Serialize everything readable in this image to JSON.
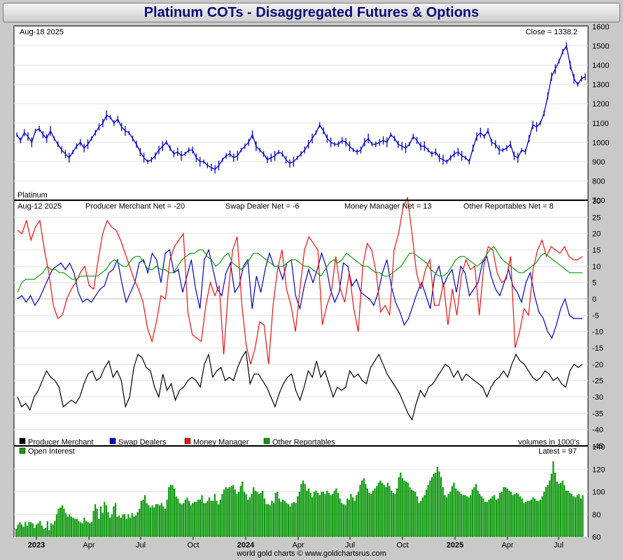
{
  "title": "Platinum COTs - Disaggregated Futures & Options",
  "credit": "world gold charts © www.goldchartsrus.com",
  "chart_data": [
    {
      "type": "line",
      "name": "price",
      "date_label": "Aug-18  2025",
      "close_label": "Close = 1338.2",
      "series_label": "Platinum",
      "ylim": [
        700,
        1600
      ],
      "yticks": [
        700,
        800,
        900,
        1000,
        1100,
        1200,
        1300,
        1400,
        1500,
        1600
      ],
      "values": [
        1040,
        1010,
        1050,
        1030,
        1000,
        1060,
        1070,
        1040,
        1020,
        1060,
        1020,
        990,
        960,
        940,
        920,
        950,
        980,
        1000,
        970,
        990,
        1020,
        1050,
        1080,
        1100,
        1140,
        1130,
        1100,
        1120,
        1080,
        1060,
        1050,
        1020,
        990,
        950,
        920,
        900,
        910,
        930,
        960,
        980,
        1000,
        970,
        940,
        950,
        930,
        940,
        960,
        960,
        920,
        900,
        900,
        880,
        870,
        860,
        880,
        910,
        930,
        940,
        920,
        930,
        960,
        980,
        1000,
        1040,
        980,
        960,
        940,
        910,
        920,
        930,
        950,
        940,
        910,
        890,
        900,
        920,
        940,
        960,
        990,
        1020,
        1050,
        1090,
        1060,
        1020,
        1000,
        990,
        990,
        1010,
        1000,
        980,
        960,
        950,
        960,
        1000,
        1020,
        990,
        990,
        1000,
        1010,
        1000,
        1040,
        1020,
        990,
        980,
        970,
        990,
        1030,
        1010,
        980,
        980,
        960,
        940,
        950,
        920,
        910,
        900,
        920,
        940,
        950,
        930,
        920,
        900,
        970,
        1030,
        1050,
        1030,
        1060,
        1000,
        990,
        960,
        960,
        970,
        990,
        930,
        920,
        960,
        950,
        1020,
        1090,
        1080,
        1100,
        1150,
        1240,
        1340,
        1380,
        1420,
        1470,
        1500,
        1400,
        1330,
        1300,
        1330,
        1340
      ]
    },
    {
      "type": "line",
      "name": "cot_net",
      "date_label": "Aug-12  2025",
      "ylim": [
        -45,
        30
      ],
      "yticks": [
        -45,
        -40,
        -35,
        -30,
        -25,
        -20,
        -15,
        -10,
        -5,
        0,
        5,
        10,
        15,
        20,
        25,
        30
      ],
      "series": [
        {
          "name": "Producer Merchant",
          "label": "Producer Merchant Net = -20",
          "color": "#000000",
          "values": [
            -30,
            -33,
            -32,
            -34,
            -30,
            -28,
            -25,
            -22,
            -24,
            -25,
            -27,
            -33,
            -32,
            -31,
            -32,
            -30,
            -26,
            -23,
            -22,
            -25,
            -24,
            -21,
            -19,
            -24,
            -22,
            -25,
            -33,
            -30,
            -21,
            -17,
            -18,
            -21,
            -22,
            -27,
            -30,
            -23,
            -28,
            -26,
            -31,
            -28,
            -27,
            -25,
            -24,
            -25,
            -27,
            -20,
            -17,
            -24,
            -22,
            -21,
            -25,
            -24,
            -25,
            -21,
            -18,
            -16,
            -26,
            -23,
            -23,
            -25,
            -27,
            -30,
            -33,
            -29,
            -26,
            -24,
            -23,
            -28,
            -31,
            -27,
            -22,
            -24,
            -19,
            -24,
            -22,
            -26,
            -30,
            -27,
            -28,
            -27,
            -22,
            -24,
            -23,
            -25,
            -26,
            -21,
            -19,
            -17,
            -20,
            -23,
            -25,
            -27,
            -29,
            -32,
            -35,
            -37,
            -32,
            -28,
            -30,
            -27,
            -26,
            -24,
            -22,
            -20,
            -21,
            -24,
            -22,
            -25,
            -23,
            -24,
            -25,
            -26,
            -27,
            -30,
            -27,
            -25,
            -24,
            -22,
            -24,
            -20,
            -17,
            -19,
            -20,
            -22,
            -24,
            -25,
            -24,
            -22,
            -23,
            -25,
            -24,
            -26,
            -27,
            -22,
            -20,
            -21,
            -20
          ]
        },
        {
          "name": "Swap Dealers",
          "label": "Swap Dealer Net = -6",
          "color": "#0000cc",
          "values": [
            0,
            1,
            -1,
            1,
            -2,
            0,
            3,
            6,
            9,
            10,
            11,
            9,
            11,
            8,
            2,
            -1,
            0,
            -1,
            1,
            3,
            4,
            8,
            9,
            12,
            5,
            -1,
            2,
            5,
            11,
            12,
            8,
            14,
            12,
            5,
            14,
            15,
            8,
            9,
            2,
            7,
            12,
            3,
            -3,
            12,
            15,
            9,
            3,
            1,
            8,
            11,
            2,
            4,
            10,
            12,
            -3,
            7,
            2,
            9,
            14,
            10,
            10,
            6,
            11,
            12,
            1,
            -3,
            4,
            9,
            5,
            9,
            14,
            10,
            3,
            -1,
            2,
            11,
            10,
            4,
            6,
            2,
            1,
            0,
            -2,
            2,
            8,
            12,
            4,
            -1,
            -4,
            -8,
            -6,
            -2,
            2,
            5,
            1,
            -3,
            7,
            10,
            4,
            7,
            9,
            2,
            10,
            8,
            1,
            3,
            5,
            11,
            13,
            7,
            3,
            1,
            5,
            9,
            4,
            2,
            -1,
            5,
            8,
            1,
            -4,
            -6,
            -10,
            -12,
            -8,
            -3,
            0,
            -5,
            -6,
            -6,
            -6
          ]
        },
        {
          "name": "Money Manager",
          "label": "Money Manager Net = 13",
          "color": "#ee1111",
          "values": [
            21,
            20,
            24,
            18,
            22,
            24,
            15,
            8,
            -2,
            -6,
            -5,
            0,
            3,
            5,
            8,
            10,
            4,
            3,
            12,
            20,
            24,
            22,
            21,
            18,
            14,
            10,
            6,
            3,
            -1,
            -9,
            -13,
            -7,
            1,
            0,
            12,
            16,
            18,
            20,
            -4,
            -11,
            -12,
            -13,
            -2,
            5,
            1,
            4,
            -17,
            2,
            15,
            19,
            -1,
            -14,
            -20,
            -15,
            -7,
            -8,
            -20,
            -2,
            9,
            15,
            3,
            -2,
            -10,
            3,
            15,
            19,
            17,
            15,
            -8,
            -2,
            2,
            13,
            3,
            -1,
            8,
            -3,
            -10,
            10,
            17,
            15,
            8,
            -4,
            -2,
            -5,
            15,
            20,
            28,
            31,
            20,
            8,
            3,
            9,
            12,
            -2,
            -2,
            5,
            -8,
            3,
            -5,
            7,
            12,
            9,
            10,
            -5,
            10,
            16,
            15,
            8,
            5,
            6,
            13,
            -15,
            -10,
            -3,
            -5,
            9,
            15,
            18,
            13,
            16,
            15,
            14,
            16,
            13,
            12,
            12,
            13
          ]
        },
        {
          "name": "Other Reportables",
          "label": "Other Reportables Net = 8",
          "color": "#119911",
          "values": [
            2,
            5,
            6,
            6,
            6,
            7,
            8,
            10,
            9,
            9,
            8,
            8,
            7,
            6,
            6,
            7,
            7,
            7,
            7,
            7,
            8,
            9,
            11,
            12,
            11,
            10,
            10,
            12,
            13,
            13,
            11,
            9,
            9,
            10,
            9,
            9,
            8,
            8,
            10,
            12,
            13,
            14,
            14,
            15,
            15,
            13,
            12,
            10,
            11,
            13,
            14,
            11,
            10,
            9,
            10,
            12,
            14,
            14,
            13,
            12,
            11,
            10,
            10,
            10,
            11,
            12,
            12,
            11,
            10,
            10,
            9,
            8,
            7,
            9,
            11,
            12,
            11,
            12,
            14,
            13,
            12,
            11,
            10,
            10,
            9,
            8,
            8,
            7,
            7,
            8,
            9,
            10,
            12,
            14,
            14,
            13,
            12,
            11,
            9,
            8,
            7,
            7,
            8,
            10,
            12,
            13,
            13,
            12,
            11,
            10,
            11,
            13,
            15,
            16,
            14,
            12,
            11,
            10,
            9,
            8,
            8,
            9,
            10,
            11,
            13,
            14,
            13,
            12,
            11,
            10,
            9,
            8,
            8,
            8,
            8
          ]
        }
      ]
    },
    {
      "type": "bar",
      "name": "open_interest",
      "label": "Open Interest",
      "latest_label": "Latest = 97",
      "units_label": "volumes in 1000's",
      "color": "#119911",
      "ylim": [
        60,
        140
      ],
      "yticks": [
        60,
        80,
        100,
        120,
        140
      ],
      "x_tick_labels": [
        "2023",
        "Apr",
        "Jul",
        "Oct",
        "2024",
        "Apr",
        "Jul",
        "Oct",
        "2025",
        "Apr",
        "Jul"
      ],
      "values": [
        67,
        71,
        73,
        71,
        69,
        73,
        70,
        73,
        73,
        72,
        68,
        71,
        72,
        74,
        70,
        67,
        68,
        74,
        66,
        72,
        71,
        74,
        80,
        85,
        86,
        88,
        85,
        81,
        78,
        80,
        78,
        77,
        76,
        76,
        74,
        73,
        72,
        77,
        74,
        73,
        72,
        73,
        83,
        89,
        85,
        76,
        87,
        81,
        91,
        88,
        82,
        77,
        80,
        87,
        90,
        78,
        79,
        77,
        80,
        80,
        76,
        80,
        77,
        81,
        78,
        79,
        82,
        85,
        92,
        93,
        97,
        90,
        88,
        86,
        88,
        86,
        89,
        89,
        88,
        90,
        87,
        85,
        93,
        104,
        106,
        106,
        103,
        96,
        94,
        90,
        89,
        90,
        93,
        95,
        92,
        88,
        90,
        91,
        91,
        93,
        93,
        97,
        90,
        90,
        92,
        95,
        92,
        92,
        98,
        92,
        89,
        93,
        98,
        102,
        104,
        103,
        104,
        105,
        106,
        102,
        98,
        100,
        105,
        109,
        100,
        98,
        93,
        95,
        98,
        104,
        101,
        100,
        98,
        99,
        101,
        94,
        89,
        89,
        88,
        92,
        90,
        99,
        100,
        94,
        91,
        93,
        92,
        90,
        89,
        87,
        90,
        91,
        90,
        96,
        100,
        107,
        110,
        107,
        101,
        103,
        99,
        95,
        100,
        101,
        99,
        97,
        100,
        100,
        98,
        101,
        99,
        97,
        98,
        101,
        103,
        99,
        94,
        90,
        89,
        88,
        94,
        93,
        98,
        95,
        92,
        97,
        100,
        106,
        110,
        112,
        107,
        103,
        99,
        98,
        101,
        103,
        105,
        108,
        110,
        108,
        106,
        104,
        108,
        105,
        101,
        99,
        98,
        103,
        113,
        117,
        112,
        110,
        109,
        108,
        104,
        102,
        101,
        100,
        96,
        90,
        92,
        95,
        97,
        102,
        106,
        110,
        113,
        116,
        117,
        122,
        118,
        113,
        104,
        97,
        95,
        98,
        100,
        105,
        108,
        103,
        101,
        100,
        98,
        97,
        97,
        96,
        95,
        97,
        102,
        104,
        107,
        101,
        98,
        96,
        94,
        91,
        91,
        93,
        94,
        96,
        97,
        93,
        94,
        99,
        100,
        104,
        104,
        103,
        101,
        100,
        97,
        98,
        99,
        98,
        96,
        94,
        90,
        91,
        92,
        92,
        93,
        95,
        94,
        92,
        92,
        93,
        96,
        100,
        104,
        106,
        110,
        116,
        127,
        117,
        109,
        107,
        108,
        110,
        106,
        101,
        101,
        99,
        98,
        96,
        95,
        97,
        98,
        94,
        97
      ]
    }
  ]
}
